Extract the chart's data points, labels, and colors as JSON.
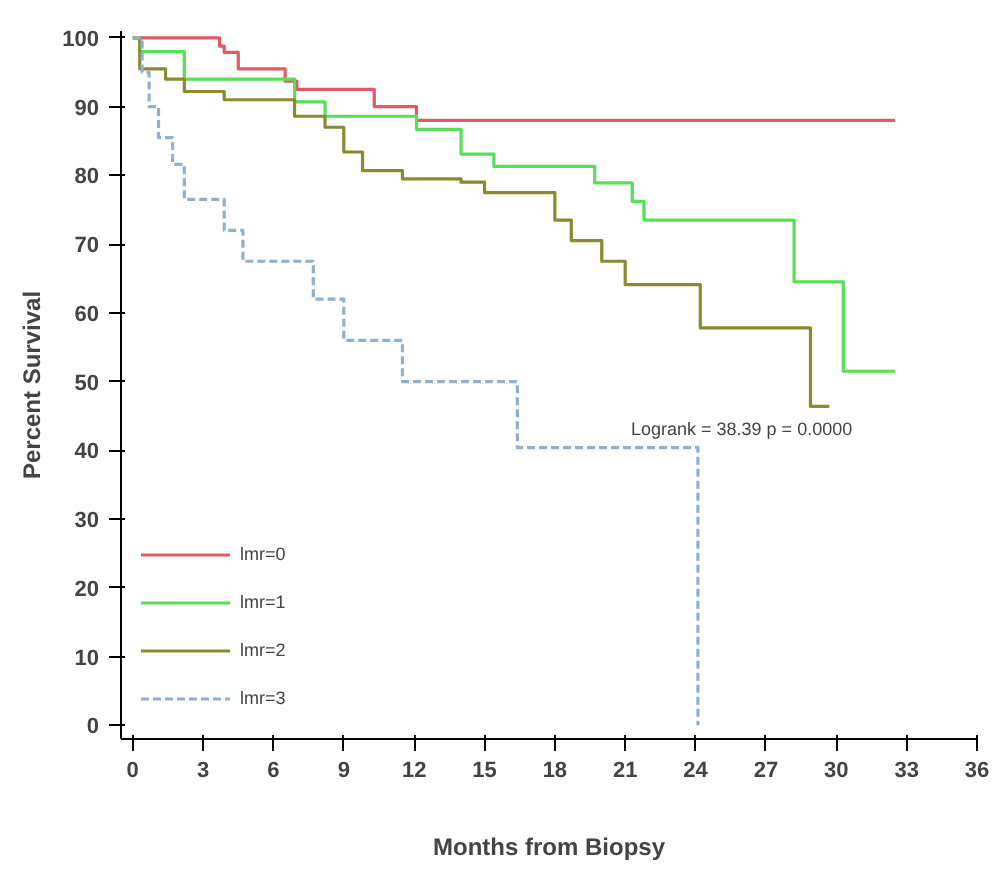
{
  "chart_data": {
    "type": "step",
    "xlabel": "Months from Biopsy",
    "ylabel": "Percent Survival",
    "xlim": [
      -0.5,
      36
    ],
    "ylim": [
      -2,
      101
    ],
    "xticks": [
      0,
      3,
      6,
      9,
      12,
      15,
      18,
      21,
      24,
      27,
      30,
      33,
      36
    ],
    "yticks": [
      0,
      10,
      20,
      30,
      40,
      50,
      60,
      70,
      80,
      90,
      100
    ],
    "grid": false,
    "legend": "bottom left",
    "marker": "none",
    "annotations": [
      "Logrank = 38.39   p = 0.0000"
    ],
    "series": [
      {
        "name": "lmr=0",
        "color": "#e05a68",
        "line_style": "solid",
        "x": [
          0,
          3.7,
          3.9,
          4.5,
          6.5,
          7,
          10.3,
          12.1,
          32.5
        ],
        "values": [
          100,
          98.8,
          97.9,
          95.5,
          93.7,
          92.5,
          90,
          88,
          88
        ]
      },
      {
        "name": "lmr=1",
        "color": "#55e055",
        "line_style": "solid",
        "x": [
          0,
          0.3,
          2.2,
          6.9,
          8.2,
          12.1,
          14,
          15.4,
          19.7,
          21.3,
          21.8,
          28.2,
          30.3,
          32.5
        ],
        "values": [
          100,
          98,
          94,
          90.7,
          88.6,
          86.7,
          83.1,
          81.3,
          78.9,
          76.2,
          73.5,
          64.5,
          51.5,
          51.5
        ]
      },
      {
        "name": "lmr=2",
        "color": "#8a8a30",
        "line_style": "solid",
        "x": [
          0,
          0.3,
          1.4,
          2.2,
          3.9,
          6.9,
          8.2,
          9,
          9.8,
          11.5,
          14,
          15,
          18,
          18.7,
          20,
          21,
          24.2,
          28.9,
          29.7
        ],
        "values": [
          100,
          95.5,
          94,
          92.2,
          91,
          88.6,
          87,
          83.4,
          80.7,
          79.5,
          79,
          77.5,
          73.5,
          70.5,
          67.5,
          64.1,
          57.8,
          46.4,
          46.4
        ]
      },
      {
        "name": "lmr=3",
        "color": "#90b0d0",
        "line_style": "dashed",
        "x": [
          0,
          0.4,
          0.7,
          1.1,
          1.7,
          2.2,
          3.9,
          4.7,
          7.7,
          9,
          11.5,
          16.4,
          24.1
        ],
        "values": [
          100,
          95,
          90,
          85.5,
          81.6,
          76.5,
          72,
          67.5,
          62,
          56,
          50,
          40.4,
          0
        ]
      }
    ]
  }
}
